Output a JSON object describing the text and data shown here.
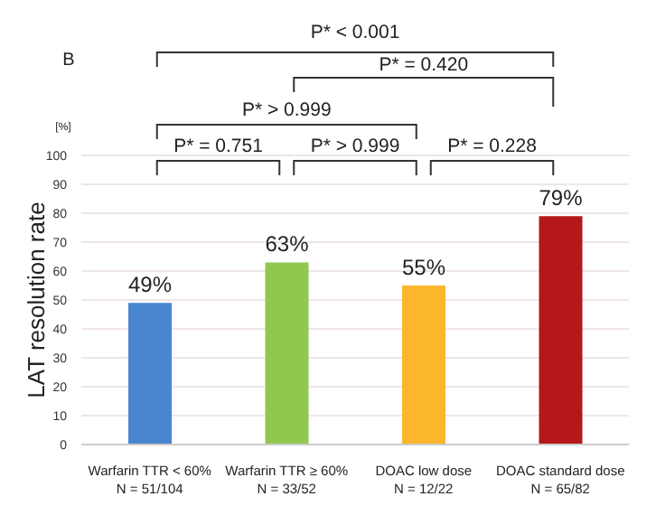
{
  "chart_data": {
    "type": "bar",
    "ylabel": "LAT resolution rate",
    "categories": [
      "Warfarin TTR < 60%\nN = 51/104",
      "Warfarin TTR ≥ 60%\nN = 33/52",
      "DOAC low dose\nN = 12/22",
      "DOAC standard dose\nN = 65/82"
    ],
    "values": [
      49,
      63,
      55,
      79
    ],
    "colors": [
      "#4a86cf",
      "#8fc74f",
      "#fbb62c",
      "#b4181b"
    ],
    "value_labels": [
      "49%",
      "63%",
      "55%",
      "79%"
    ],
    "ylim": [
      0,
      100
    ],
    "yticks": [
      0,
      10,
      20,
      30,
      40,
      50,
      60,
      70,
      80,
      90,
      100
    ],
    "grid": "y",
    "annotations": [
      "B",
      "[%]",
      "P* < 0.001",
      "P* = 0.420",
      "P* > 0.999",
      "P* = 0.751",
      "P* > 0.999",
      "P* = 0.228"
    ]
  }
}
